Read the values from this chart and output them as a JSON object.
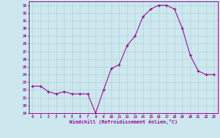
{
  "x": [
    0,
    1,
    2,
    3,
    4,
    5,
    6,
    7,
    8,
    9,
    10,
    11,
    12,
    13,
    14,
    15,
    16,
    17,
    18,
    19,
    20,
    21,
    22,
    23
  ],
  "y": [
    22.5,
    22.5,
    21.8,
    21.5,
    21.8,
    21.5,
    21.5,
    21.5,
    19.0,
    22.0,
    24.8,
    25.3,
    27.8,
    29.0,
    31.5,
    32.5,
    33.0,
    33.0,
    32.5,
    30.0,
    26.5,
    24.5,
    24.0,
    24.0
  ],
  "ylim": [
    19,
    33.5
  ],
  "yticks": [
    19,
    20,
    21,
    22,
    23,
    24,
    25,
    26,
    27,
    28,
    29,
    30,
    31,
    32,
    33
  ],
  "xticks": [
    0,
    1,
    2,
    3,
    4,
    5,
    6,
    7,
    8,
    9,
    10,
    11,
    12,
    13,
    14,
    15,
    16,
    17,
    18,
    19,
    20,
    21,
    22,
    23
  ],
  "xlabel": "Windchill (Refroidissement éolien,°C)",
  "line_color": "#990099",
  "marker": "+",
  "bg_color": "#cce8ee",
  "grid_color": "#aacccc",
  "spine_color": "#880088"
}
